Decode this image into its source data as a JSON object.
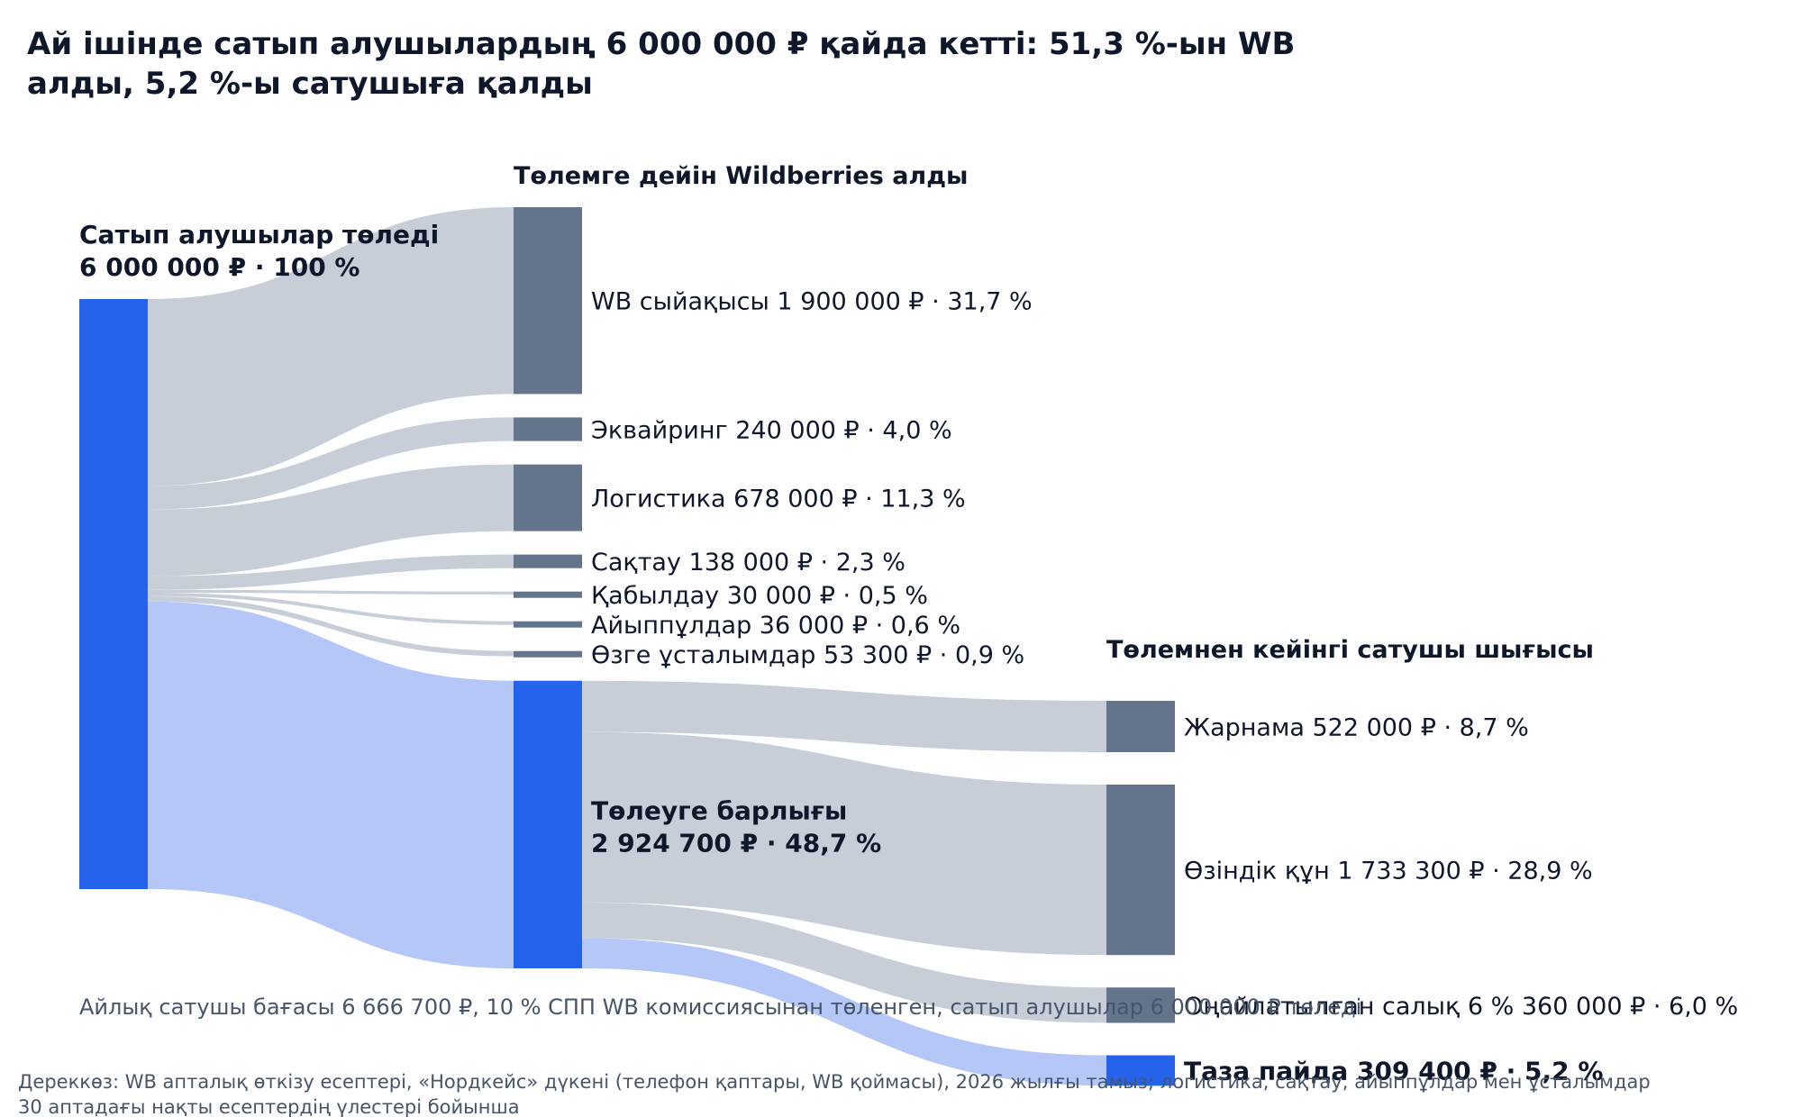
{
  "title": [
    "Ай ішінде сатып алушылардың 6 000 000 ₽ қайда кетті: 51,3 %-ын WB",
    "алды, 5,2 %-ы сатушыға қалды"
  ],
  "column_headers": {
    "wb": "Төлемге дейін Wildberries алды",
    "seller": "Төлемнен кейінгі сатушы шығысы"
  },
  "note": "Айлық сатушы бағасы 6 666 700 ₽, 10 % СПП WB комиссиясынан төленген, сатып алушылар 6 000 000 ₽ төледі",
  "source": [
    "Дереккөз: WB апталық өткізу есептері, «Нордкейс» дүкені (телефон қаптары, WB қоймасы), 2026 жылғы тамыз; логистика, сақтау, айыппұлдар мен ұсталымдар",
    "30 аптадағы нақты есептердің үлестері бойынша"
  ],
  "colors": {
    "accent": "#2563eb",
    "node_gray": "#64748b",
    "link_gray": "#c7ced8",
    "link_blue": "#b4c7f7",
    "text": "#0f172a",
    "muted": "#475569"
  },
  "chart_data": {
    "type": "sankey",
    "unit": "₽",
    "nodes": [
      {
        "id": "buyers",
        "label": [
          "Сатып алушылар төледі",
          "6 000 000 ₽ · 100 %"
        ],
        "value": 6000000,
        "percent": 100.0,
        "column": 0,
        "highlight": true
      },
      {
        "id": "wb_fee",
        "label": [
          "WB сыйақысы  1 900 000 ₽ · 31,7 %"
        ],
        "value": 1900000,
        "percent": 31.7,
        "column": 1
      },
      {
        "id": "acquiring",
        "label": [
          "Эквайринг  240 000 ₽ · 4,0 %"
        ],
        "value": 240000,
        "percent": 4.0,
        "column": 1
      },
      {
        "id": "logistics",
        "label": [
          "Логистика  678 000 ₽ · 11,3 %"
        ],
        "value": 678000,
        "percent": 11.3,
        "column": 1
      },
      {
        "id": "storage",
        "label": [
          "Сақтау  138 000 ₽ · 2,3 %"
        ],
        "value": 138000,
        "percent": 2.3,
        "column": 1
      },
      {
        "id": "acceptance",
        "label": [
          "Қабылдау  30 000 ₽ · 0,5 %"
        ],
        "value": 30000,
        "percent": 0.5,
        "column": 1
      },
      {
        "id": "fines",
        "label": [
          "Айыппұлдар  36 000 ₽ · 0,6 %"
        ],
        "value": 36000,
        "percent": 0.6,
        "column": 1
      },
      {
        "id": "other",
        "label": [
          "Өзге ұсталымдар  53 300 ₽ · 0,9 %"
        ],
        "value": 53300,
        "percent": 0.9,
        "column": 1
      },
      {
        "id": "payout",
        "label": [
          "Төлеуге барлығы",
          "2 924 700 ₽ · 48,7 %"
        ],
        "value": 2924700,
        "percent": 48.7,
        "column": 1,
        "highlight": true
      },
      {
        "id": "ads",
        "label": [
          "Жарнама  522 000 ₽ · 8,7 %"
        ],
        "value": 522000,
        "percent": 8.7,
        "column": 2
      },
      {
        "id": "cogs",
        "label": [
          "Өзіндік құн  1 733 300 ₽ · 28,9 %"
        ],
        "value": 1733300,
        "percent": 28.9,
        "column": 2
      },
      {
        "id": "tax",
        "label": [
          "Оңайлатылған салық 6 %  360 000 ₽ · 6,0 %"
        ],
        "value": 360000,
        "percent": 6.0,
        "column": 2
      },
      {
        "id": "profit",
        "label": [
          "Таза пайда  309 400 ₽ · 5,2 %"
        ],
        "value": 309400,
        "percent": 5.2,
        "column": 2,
        "highlight": true
      }
    ],
    "links": [
      {
        "source": "buyers",
        "target": "wb_fee",
        "value": 1900000
      },
      {
        "source": "buyers",
        "target": "acquiring",
        "value": 240000
      },
      {
        "source": "buyers",
        "target": "logistics",
        "value": 678000
      },
      {
        "source": "buyers",
        "target": "storage",
        "value": 138000
      },
      {
        "source": "buyers",
        "target": "acceptance",
        "value": 30000
      },
      {
        "source": "buyers",
        "target": "fines",
        "value": 36000
      },
      {
        "source": "buyers",
        "target": "other",
        "value": 53300
      },
      {
        "source": "buyers",
        "target": "payout",
        "value": 2924700
      },
      {
        "source": "payout",
        "target": "ads",
        "value": 522000
      },
      {
        "source": "payout",
        "target": "cogs",
        "value": 1733300
      },
      {
        "source": "payout",
        "target": "tax",
        "value": 360000
      },
      {
        "source": "payout",
        "target": "profit",
        "value": 309400
      }
    ]
  }
}
